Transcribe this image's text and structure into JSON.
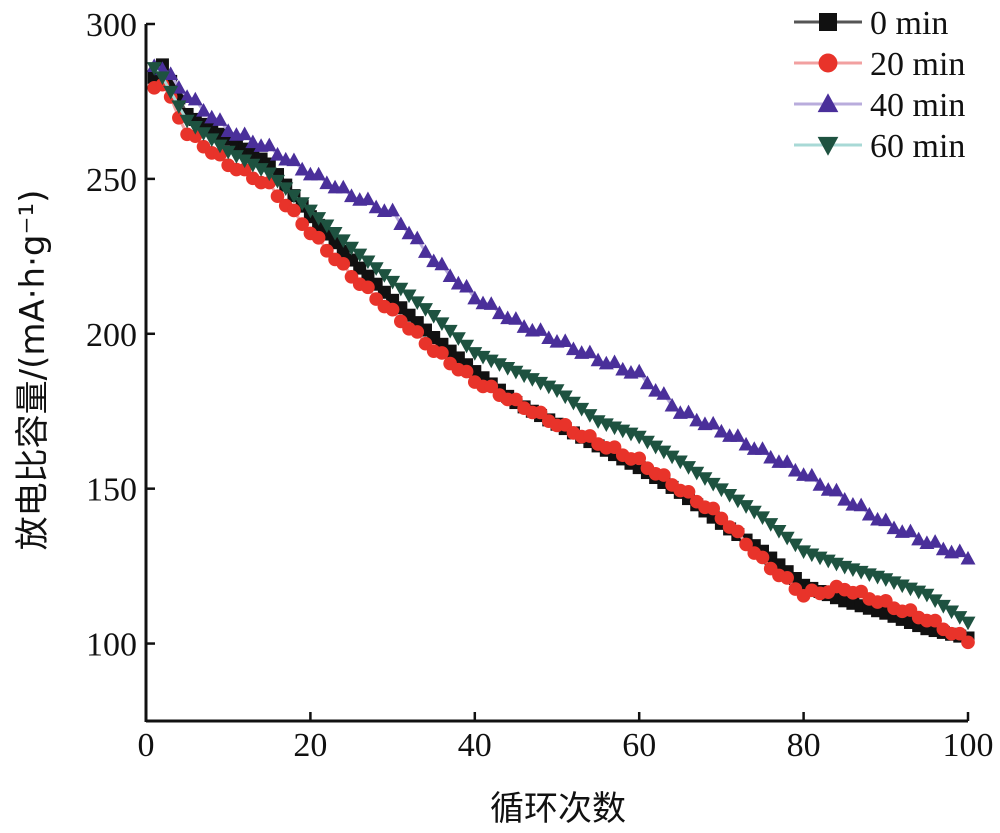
{
  "chart_data": {
    "type": "line",
    "xlabel": "循环次数",
    "ylabel": "放电比容量/(mA·h·g⁻¹)",
    "xlim": [
      0,
      100
    ],
    "ylim": [
      75,
      300
    ],
    "xticks": [
      "0",
      "20",
      "40",
      "60",
      "80",
      "100"
    ],
    "yticks": [
      "100",
      "150",
      "200",
      "250",
      "300"
    ],
    "legend_position": "top-right",
    "x_anchor": [
      1,
      2,
      5,
      10,
      15,
      20,
      25,
      30,
      35,
      40,
      45,
      50,
      55,
      60,
      65,
      70,
      75,
      80,
      85,
      90,
      95,
      100
    ],
    "series": [
      {
        "name": "0 min",
        "color": "#111111",
        "line_color": "#555555",
        "marker": "square",
        "values_at_anchor": [
          282,
          286,
          270,
          262,
          254,
          237,
          223,
          210,
          198,
          187,
          177,
          170,
          163,
          156,
          148,
          138,
          129,
          118,
          113,
          109,
          104,
          101
        ]
      },
      {
        "name": "20 min",
        "color": "#e8332a",
        "line_color": "#f2a0a0",
        "marker": "circle",
        "values_at_anchor": [
          280,
          281,
          265,
          255,
          248,
          233,
          219,
          207,
          195,
          185,
          178,
          171,
          165,
          159,
          150,
          141,
          127,
          116,
          118,
          113,
          108,
          101
        ]
      },
      {
        "name": "40 min",
        "color": "#4a2f9a",
        "line_color": "#b9acdc",
        "marker": "triangle-up",
        "values_at_anchor": [
          287,
          286,
          277,
          266,
          260,
          252,
          245,
          239,
          224,
          212,
          204,
          198,
          192,
          187,
          175,
          169,
          162,
          155,
          147,
          139,
          133,
          128
        ]
      },
      {
        "name": "60 min",
        "color": "#1e5240",
        "line_color": "#a8d9d6",
        "marker": "triangle-down",
        "values_at_anchor": [
          285,
          282,
          268,
          258,
          251,
          239,
          227,
          216,
          205,
          193,
          187,
          181,
          171,
          166,
          158,
          149,
          140,
          129,
          124,
          120,
          115,
          106
        ]
      }
    ]
  }
}
